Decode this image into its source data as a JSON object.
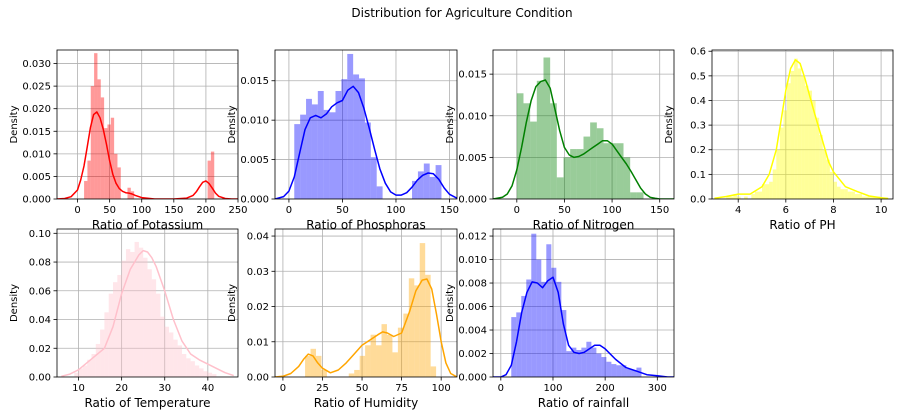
{
  "figure": {
    "suptitle": "Distribution for Agriculture Condition"
  },
  "chart_data": [
    {
      "type": "histogram",
      "xlabel": "Ratio of Potassium",
      "ylabel": "Density",
      "xlim": [
        -32,
        250
      ],
      "ylim": [
        0,
        0.033
      ],
      "xticks": [
        0,
        50,
        100,
        150,
        200,
        250
      ],
      "yticks": [
        0.0,
        0.005,
        0.01,
        0.015,
        0.02,
        0.025,
        0.03
      ],
      "ytick_decimals": 3,
      "grid": true,
      "color": "#ff0000",
      "bins": {
        "start": 5,
        "width": 5.2,
        "density": [
          0.0,
          0.004,
          0.0085,
          0.025,
          0.0323,
          0.0265,
          0.0225,
          0.0157,
          0.0165,
          0.018,
          0.01,
          0.007,
          0.0,
          0.0,
          0.0025,
          0.0017,
          0.0,
          0.0,
          0.0,
          0.0,
          0.0,
          0.0,
          0.0,
          0.0,
          0.0,
          0.0,
          0.0,
          0.0,
          0.0,
          0.0,
          0.0,
          0.0,
          0.0,
          0.0,
          0.0,
          0.0,
          0.0,
          0.0,
          0.0085,
          0.0105
        ]
      },
      "kde": {
        "x": [
          -32,
          -20,
          -10,
          0,
          5,
          10,
          15,
          20,
          25,
          30,
          35,
          40,
          45,
          50,
          55,
          60,
          65,
          70,
          75,
          80,
          85,
          90,
          100,
          120,
          150,
          170,
          180,
          185,
          190,
          195,
          200,
          205,
          210,
          215,
          220,
          230,
          240,
          250
        ],
        "y": [
          0.0,
          0.0001,
          0.0005,
          0.002,
          0.0042,
          0.0073,
          0.0115,
          0.0158,
          0.0187,
          0.0193,
          0.018,
          0.0155,
          0.0122,
          0.0085,
          0.0055,
          0.0035,
          0.0023,
          0.0017,
          0.0014,
          0.0013,
          0.0011,
          0.0008,
          0.0003,
          0.0,
          0.0,
          0.0002,
          0.0008,
          0.0016,
          0.0027,
          0.0037,
          0.004,
          0.0034,
          0.0024,
          0.0013,
          0.0006,
          0.0001,
          0.0,
          0.0
        ]
      }
    },
    {
      "type": "histogram",
      "xlabel": "Ratio of Phosphoras",
      "ylabel": "Density",
      "xlim": [
        -13,
        157
      ],
      "ylim": [
        0,
        0.0189
      ],
      "xticks": [
        0,
        50,
        100,
        150
      ],
      "yticks": [
        0.0,
        0.005,
        0.01,
        0.015
      ],
      "ytick_decimals": 3,
      "grid": true,
      "color": "#0000ff",
      "bins": {
        "start": 5,
        "width": 5.5,
        "density": [
          0.0095,
          0.0107,
          0.0127,
          0.012,
          0.0137,
          0.0113,
          0.011,
          0.0137,
          0.0152,
          0.0184,
          0.0158,
          0.0153,
          0.0097,
          0.0053,
          0.0016,
          0.0,
          0.0,
          0.0,
          0.0,
          0.0,
          0.0023,
          0.0035,
          0.0045,
          0.0028,
          0.0043
        ]
      },
      "kde": {
        "x": [
          -13,
          -5,
          0,
          5,
          10,
          15,
          20,
          25,
          30,
          35,
          40,
          45,
          50,
          55,
          60,
          65,
          70,
          75,
          80,
          85,
          90,
          95,
          100,
          105,
          110,
          115,
          120,
          125,
          130,
          135,
          140,
          145,
          150,
          157
        ],
        "y": [
          0.0,
          0.0003,
          0.001,
          0.0028,
          0.0058,
          0.0088,
          0.0103,
          0.0106,
          0.0103,
          0.0108,
          0.0117,
          0.0122,
          0.0125,
          0.0138,
          0.0143,
          0.0135,
          0.0115,
          0.009,
          0.0063,
          0.0038,
          0.002,
          0.0009,
          0.0005,
          0.0005,
          0.0008,
          0.0015,
          0.0024,
          0.003,
          0.0033,
          0.0032,
          0.0025,
          0.0014,
          0.0006,
          0.0001
        ]
      }
    },
    {
      "type": "histogram",
      "xlabel": "Ratio of Nitrogen",
      "ylabel": "Density",
      "xlim": [
        -25,
        165
      ],
      "ylim": [
        0,
        0.0179
      ],
      "xticks": [
        0,
        50,
        100,
        150
      ],
      "yticks": [
        0.0,
        0.005,
        0.01,
        0.015
      ],
      "ytick_decimals": 3,
      "grid": true,
      "color": "#008000",
      "bins": {
        "start": 0,
        "width": 7.0,
        "density": [
          0.0127,
          0.0115,
          0.0093,
          0.0142,
          0.017,
          0.0115,
          0.0026,
          0.005,
          0.006,
          0.006,
          0.0075,
          0.0092,
          0.0085,
          0.0067,
          0.0067,
          0.0067,
          0.005,
          0.0008,
          0.0008,
          0.0
        ]
      },
      "kde": {
        "x": [
          -25,
          -15,
          -10,
          -5,
          0,
          5,
          10,
          15,
          20,
          25,
          30,
          35,
          40,
          45,
          50,
          55,
          60,
          65,
          70,
          75,
          80,
          85,
          90,
          95,
          100,
          105,
          110,
          115,
          120,
          125,
          130,
          135,
          140,
          145,
          150,
          160,
          165
        ],
        "y": [
          0.0,
          0.0002,
          0.0006,
          0.0016,
          0.0035,
          0.0062,
          0.0092,
          0.0118,
          0.0135,
          0.0141,
          0.0143,
          0.0133,
          0.0108,
          0.0082,
          0.0062,
          0.0053,
          0.005,
          0.0051,
          0.0054,
          0.0058,
          0.0062,
          0.0066,
          0.007,
          0.007,
          0.0066,
          0.0058,
          0.005,
          0.0042,
          0.0033,
          0.0023,
          0.0013,
          0.0006,
          0.0002,
          0.0001,
          0.0,
          0.0,
          0.0
        ]
      }
    },
    {
      "type": "histogram",
      "xlabel": "Ratio of PH",
      "ylabel": "Density",
      "xlim": [
        2.9,
        10.5
      ],
      "ylim": [
        0,
        0.605
      ],
      "xticks": [
        4,
        6,
        8,
        10
      ],
      "yticks": [
        0.0,
        0.1,
        0.2,
        0.3,
        0.4,
        0.5,
        0.6
      ],
      "ytick_decimals": 1,
      "grid": true,
      "color": "#ffff00",
      "bins": {
        "start": 3.5,
        "width": 0.15,
        "density": [
          0.01,
          0.01,
          0.02,
          0.01,
          0.0,
          0.01,
          0.0,
          0.02,
          0.03,
          0.03,
          0.06,
          0.06,
          0.07,
          0.12,
          0.2,
          0.29,
          0.36,
          0.47,
          0.52,
          0.57,
          0.53,
          0.5,
          0.46,
          0.44,
          0.4,
          0.33,
          0.26,
          0.2,
          0.16,
          0.11,
          0.07,
          0.05,
          0.04,
          0.04,
          0.03,
          0.03,
          0.02,
          0.02,
          0.01,
          0.01,
          0.01,
          0.01,
          0.01
        ]
      },
      "kde": {
        "x": [
          3.0,
          3.5,
          4.0,
          4.5,
          5.0,
          5.3,
          5.6,
          5.8,
          6.0,
          6.2,
          6.4,
          6.6,
          6.8,
          7.0,
          7.2,
          7.5,
          7.8,
          8.0,
          8.5,
          9.0,
          9.5,
          10.0,
          10.3
        ],
        "y": [
          0.003,
          0.01,
          0.02,
          0.02,
          0.05,
          0.1,
          0.2,
          0.32,
          0.44,
          0.53,
          0.565,
          0.55,
          0.49,
          0.42,
          0.35,
          0.25,
          0.15,
          0.11,
          0.05,
          0.03,
          0.012,
          0.005,
          0.002
        ]
      }
    },
    {
      "type": "histogram",
      "xlabel": "Ratio of Temperature",
      "ylabel": "Density",
      "xlim": [
        5,
        47
      ],
      "ylim": [
        0,
        0.103
      ],
      "xticks": [
        10,
        20,
        30,
        40
      ],
      "yticks": [
        0.0,
        0.02,
        0.04,
        0.06,
        0.08,
        0.1
      ],
      "ytick_decimals": 2,
      "grid": true,
      "color": "#ffc0cb",
      "bins": {
        "start": 9,
        "width": 1.0,
        "density": [
          0.003,
          0.006,
          0.008,
          0.012,
          0.016,
          0.023,
          0.033,
          0.045,
          0.058,
          0.066,
          0.071,
          0.081,
          0.089,
          0.087,
          0.094,
          0.09,
          0.083,
          0.075,
          0.068,
          0.058,
          0.042,
          0.035,
          0.031,
          0.026,
          0.022,
          0.016,
          0.013,
          0.011,
          0.008,
          0.006,
          0.004,
          0.003,
          0.002
        ]
      },
      "kde": {
        "x": [
          6,
          8,
          10,
          12,
          14,
          16,
          18,
          20,
          22,
          24,
          25,
          26,
          27,
          28,
          30,
          32,
          34,
          36,
          38,
          40,
          42,
          44,
          46
        ],
        "y": [
          0.0005,
          0.002,
          0.005,
          0.01,
          0.015,
          0.02,
          0.035,
          0.058,
          0.075,
          0.085,
          0.088,
          0.087,
          0.083,
          0.077,
          0.06,
          0.04,
          0.025,
          0.016,
          0.012,
          0.009,
          0.006,
          0.003,
          0.001
        ]
      }
    },
    {
      "type": "histogram",
      "xlabel": "Ratio of Humidity",
      "ylabel": "Density",
      "xlim": [
        -5,
        110
      ],
      "ylim": [
        0,
        0.042
      ],
      "xticks": [
        0,
        25,
        50,
        75,
        100
      ],
      "yticks": [
        0.0,
        0.01,
        0.02,
        0.03,
        0.04
      ],
      "ytick_decimals": 2,
      "grid": true,
      "color": "#ffa500",
      "bins": {
        "start": 14,
        "width": 3.45,
        "density": [
          0.006,
          0.008,
          0.006,
          0.002,
          0.0,
          0.0,
          0.0,
          0.0,
          0.001,
          0.002,
          0.006,
          0.009,
          0.012,
          0.009,
          0.015,
          0.012,
          0.007,
          0.014,
          0.018,
          0.028,
          0.026,
          0.038,
          0.029,
          0.003
        ]
      },
      "kde": {
        "x": [
          -5,
          0,
          5,
          10,
          13,
          16,
          19,
          22,
          25,
          30,
          35,
          40,
          45,
          50,
          55,
          60,
          63,
          66,
          70,
          75,
          80,
          84,
          88,
          91,
          94,
          97,
          100,
          103,
          106,
          110
        ],
        "y": [
          0.0,
          0.0002,
          0.001,
          0.003,
          0.005,
          0.0065,
          0.006,
          0.004,
          0.0025,
          0.0012,
          0.002,
          0.004,
          0.0065,
          0.009,
          0.0105,
          0.012,
          0.0128,
          0.0125,
          0.0115,
          0.0125,
          0.0185,
          0.0245,
          0.0275,
          0.0278,
          0.025,
          0.018,
          0.01,
          0.004,
          0.001,
          0.0
        ]
      }
    },
    {
      "type": "histogram",
      "xlabel": "Ratio of rainfall",
      "ylabel": "Density",
      "xlim": [
        -15,
        332
      ],
      "ylim": [
        0,
        0.0126
      ],
      "xticks": [
        0,
        100,
        200,
        300
      ],
      "yticks": [
        0.0,
        0.002,
        0.004,
        0.006,
        0.008,
        0.01,
        0.012
      ],
      "ytick_decimals": 3,
      "grid": true,
      "color": "#0000ff",
      "bins": {
        "start": 20,
        "width": 9.6,
        "density": [
          0.0051,
          0.0055,
          0.0069,
          0.0083,
          0.0122,
          0.01,
          0.0081,
          0.0113,
          0.0093,
          0.0081,
          0.0057,
          0.0022,
          0.0025,
          0.0023,
          0.0025,
          0.003,
          0.0025,
          0.002,
          0.0017,
          0.0013,
          0.0011,
          0.001,
          0.001,
          0.0007,
          0.0006,
          0.0008,
          0.0
        ]
      },
      "kde": {
        "x": [
          -15,
          0,
          10,
          20,
          30,
          40,
          50,
          60,
          70,
          80,
          90,
          100,
          110,
          120,
          130,
          140,
          150,
          160,
          170,
          180,
          190,
          200,
          220,
          240,
          260,
          280,
          300,
          320,
          332
        ],
        "y": [
          0.0,
          0.0,
          0.0002,
          0.001,
          0.003,
          0.0055,
          0.0072,
          0.0081,
          0.008,
          0.0076,
          0.0082,
          0.0085,
          0.0072,
          0.0045,
          0.0027,
          0.0021,
          0.002,
          0.0021,
          0.0024,
          0.0027,
          0.0027,
          0.0024,
          0.0015,
          0.0008,
          0.0005,
          0.0002,
          0.0001,
          0.0,
          0.0
        ]
      }
    }
  ]
}
